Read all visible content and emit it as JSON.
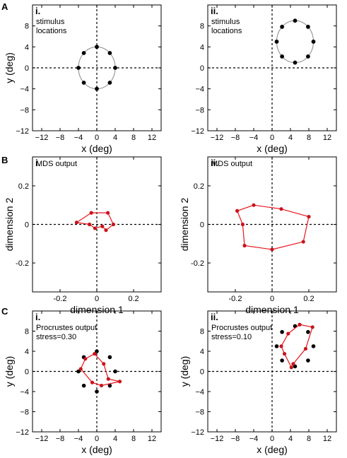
{
  "section_labels": [
    "A",
    "B",
    "C"
  ],
  "chart_data": [
    {
      "id": "A-i",
      "type": "scatter",
      "roman": "i.",
      "xlabel": "x (deg)",
      "ylabel": "y (deg)",
      "xlim": [
        -14,
        14
      ],
      "ylim": [
        -12,
        12
      ],
      "xticks": [
        -12,
        -8,
        -4,
        0,
        4,
        8,
        12
      ],
      "yticks": [
        -12,
        -8,
        -4,
        0,
        4,
        8
      ],
      "annotations": [
        "stimulus",
        "locations"
      ],
      "circle": {
        "cx": 0,
        "cy": 0,
        "r": 4
      },
      "points": [
        [
          0,
          4
        ],
        [
          2.83,
          2.83
        ],
        [
          4,
          0
        ],
        [
          2.83,
          -2.83
        ],
        [
          0,
          -4
        ],
        [
          -2.83,
          -2.83
        ],
        [
          -4,
          0
        ],
        [
          -2.83,
          2.83
        ]
      ],
      "point_color": "#000000"
    },
    {
      "id": "A-ii",
      "type": "scatter",
      "roman": "ii.",
      "xlabel": "x (deg)",
      "ylabel": "",
      "xlim": [
        -14,
        14
      ],
      "ylim": [
        -12,
        12
      ],
      "xticks": [
        -12,
        -8,
        -4,
        0,
        4,
        8,
        12
      ],
      "yticks": [
        -12,
        -8,
        -4,
        0,
        4,
        8
      ],
      "annotations": [
        "stimulus",
        "locations"
      ],
      "circle": {
        "cx": 5,
        "cy": 5,
        "r": 4
      },
      "points": [
        [
          5,
          9
        ],
        [
          7.83,
          7.83
        ],
        [
          9,
          5
        ],
        [
          7.83,
          2.17
        ],
        [
          5,
          1
        ],
        [
          2.17,
          2.17
        ],
        [
          1,
          5
        ],
        [
          2.17,
          7.83
        ]
      ],
      "point_color": "#000000"
    },
    {
      "id": "B-i",
      "type": "line",
      "roman": "i.",
      "xlabel": "dimension 1",
      "ylabel": "dimension 2",
      "xlim": [
        -0.35,
        0.35
      ],
      "ylim": [
        -0.35,
        0.35
      ],
      "xticks": [
        -0.2,
        0,
        0.2
      ],
      "yticks": [
        -0.2,
        0,
        0.2
      ],
      "xticklabels": [
        "-0.2",
        "0",
        "0.2"
      ],
      "yticklabels": [
        "-0.2",
        "0",
        "0.2"
      ],
      "annotations": [
        "MDS output"
      ],
      "polygon": [
        [
          -0.03,
          0.06
        ],
        [
          0.06,
          0.06
        ],
        [
          0.09,
          0.0
        ],
        [
          0.05,
          -0.03
        ],
        [
          0.03,
          -0.01
        ],
        [
          -0.01,
          -0.02
        ],
        [
          -0.04,
          0.0
        ],
        [
          -0.11,
          0.01
        ],
        [
          -0.03,
          0.06
        ]
      ],
      "points": [
        [
          -0.03,
          0.06
        ],
        [
          0.06,
          0.06
        ],
        [
          0.09,
          0.0
        ],
        [
          0.05,
          -0.03
        ],
        [
          0.03,
          -0.01
        ],
        [
          -0.01,
          -0.02
        ],
        [
          -0.04,
          0.0
        ],
        [
          -0.11,
          0.01
        ]
      ],
      "line_color": "#e8141c",
      "point_color": "#c8141c"
    },
    {
      "id": "B-ii",
      "type": "line",
      "roman": "ii.",
      "xlabel": "dimension 1",
      "ylabel": "dimension 2",
      "xlim": [
        -0.35,
        0.35
      ],
      "ylim": [
        -0.35,
        0.35
      ],
      "xticks": [
        -0.2,
        0,
        0.2
      ],
      "yticks": [
        -0.2,
        0,
        0.2
      ],
      "xticklabels": [
        "-0.2",
        "0",
        "0.2"
      ],
      "yticklabels": [
        "-0.2",
        "0",
        "0.2"
      ],
      "annotations": [
        "MDS output"
      ],
      "polygon": [
        [
          -0.1,
          0.1
        ],
        [
          0.05,
          0.08
        ],
        [
          0.2,
          0.04
        ],
        [
          0.17,
          -0.09
        ],
        [
          0.0,
          -0.13
        ],
        [
          -0.15,
          -0.11
        ],
        [
          -0.16,
          -0.0
        ],
        [
          -0.19,
          0.07
        ],
        [
          -0.1,
          0.1
        ]
      ],
      "points": [
        [
          -0.1,
          0.1
        ],
        [
          0.05,
          0.08
        ],
        [
          0.2,
          0.04
        ],
        [
          0.17,
          -0.09
        ],
        [
          0.0,
          -0.13
        ],
        [
          -0.15,
          -0.11
        ],
        [
          -0.16,
          -0.0
        ],
        [
          -0.19,
          0.07
        ]
      ],
      "line_color": "#e8141c",
      "point_color": "#c8141c"
    },
    {
      "id": "C-i",
      "type": "scatter",
      "roman": "i.",
      "xlabel": "x (deg)",
      "ylabel": "y (deg)",
      "xlim": [
        -14,
        14
      ],
      "ylim": [
        -12,
        12
      ],
      "xticks": [
        -12,
        -8,
        -4,
        0,
        4,
        8,
        12
      ],
      "yticks": [
        -12,
        -8,
        -4,
        0,
        4,
        8
      ],
      "annotations": [
        "Procrustes output",
        "stress=0.30"
      ],
      "black_points": [
        [
          0,
          4
        ],
        [
          2.83,
          2.83
        ],
        [
          4,
          0
        ],
        [
          2.83,
          -2.83
        ],
        [
          0,
          -4
        ],
        [
          -2.83,
          -2.83
        ],
        [
          -4,
          0
        ],
        [
          -2.83,
          2.83
        ]
      ],
      "polygon": [
        [
          -0.5,
          3.5
        ],
        [
          1.5,
          1.5
        ],
        [
          2.5,
          -1.5
        ],
        [
          5,
          -2
        ],
        [
          1,
          -2.8
        ],
        [
          -1,
          -2.2
        ],
        [
          -3.5,
          0.5
        ],
        [
          -2.5,
          2.5
        ],
        [
          -0.5,
          3.5
        ]
      ],
      "points": [
        [
          -0.5,
          3.5
        ],
        [
          1.5,
          1.5
        ],
        [
          2.5,
          -1.5
        ],
        [
          5,
          -2
        ],
        [
          1,
          -2.8
        ],
        [
          -1,
          -2.2
        ],
        [
          -3.5,
          0.5
        ],
        [
          -2.5,
          2.5
        ]
      ],
      "line_color": "#e8141c",
      "point_color": "#c8141c"
    },
    {
      "id": "C-ii",
      "type": "scatter",
      "roman": "ii.",
      "xlabel": "x (deg)",
      "ylabel": "y (deg)",
      "xlim": [
        -14,
        14
      ],
      "ylim": [
        -12,
        12
      ],
      "xticks": [
        -12,
        -8,
        -4,
        0,
        4,
        8,
        12
      ],
      "yticks": [
        -12,
        -8,
        -4,
        0,
        4,
        8
      ],
      "annotations": [
        "Procrustes output",
        "stress=0.10"
      ],
      "black_points": [
        [
          5,
          9
        ],
        [
          7.83,
          7.83
        ],
        [
          9,
          5
        ],
        [
          7.83,
          2.17
        ],
        [
          5,
          1
        ],
        [
          2.17,
          2.17
        ],
        [
          1,
          5
        ],
        [
          2.17,
          7.83
        ]
      ],
      "polygon": [
        [
          6,
          9.3
        ],
        [
          8.8,
          8.8
        ],
        [
          7.3,
          4.5
        ],
        [
          4.6,
          1.5
        ],
        [
          4.2,
          0.8
        ],
        [
          2.7,
          3.5
        ],
        [
          2,
          5
        ],
        [
          3.5,
          7.5
        ],
        [
          6,
          9.3
        ]
      ],
      "points": [
        [
          6,
          9.3
        ],
        [
          8.8,
          8.8
        ],
        [
          7.3,
          4.5
        ],
        [
          4.6,
          1.5
        ],
        [
          4.2,
          0.8
        ],
        [
          2.7,
          3.5
        ],
        [
          2,
          5
        ],
        [
          3.5,
          7.5
        ]
      ],
      "line_color": "#e8141c",
      "point_color": "#c8141c"
    }
  ]
}
